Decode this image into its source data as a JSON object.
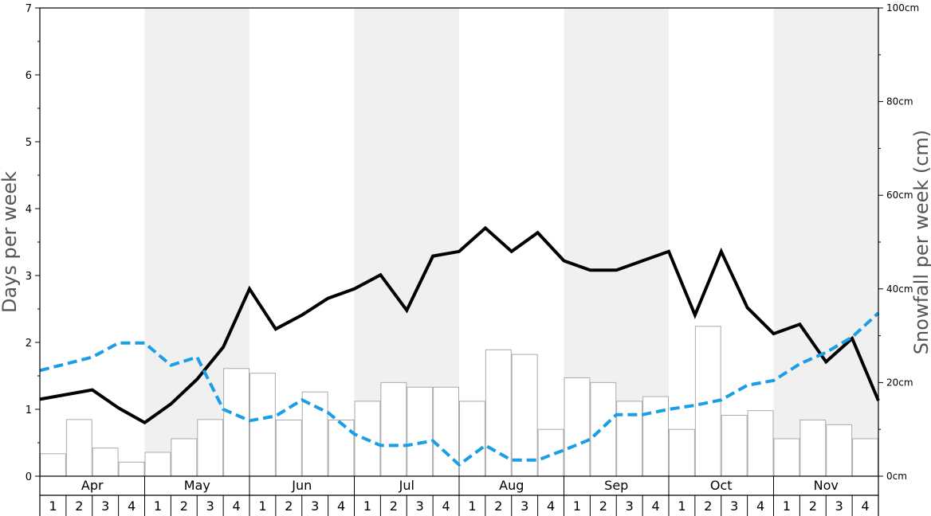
{
  "chart_data": {
    "type": "bar+line",
    "y_left_label": "Days per week",
    "y_right_label": "Snowfall per week (cm)",
    "y_left_ticks": [
      "0",
      "1",
      "2",
      "3",
      "4",
      "5",
      "6",
      "7"
    ],
    "y_left_range": [
      0,
      7
    ],
    "y_right_ticks": [
      "0cm",
      "20cm",
      "40cm",
      "60cm",
      "80cm",
      "100cm"
    ],
    "y_right_range": [
      0,
      100
    ],
    "months": [
      "Apr",
      "May",
      "Jun",
      "Jul",
      "Aug",
      "Sep",
      "Oct",
      "Nov"
    ],
    "weeks_per_month": [
      "1",
      "2",
      "3",
      "4"
    ],
    "alternate_month_shading": true,
    "colors": {
      "shade": "#f0f0f0",
      "bar_fill": "#ffffff",
      "bar_stroke": "#aaaaaa",
      "solid_line": "#000000",
      "dashed_line": "#1a9ee5",
      "axis": "#000000"
    },
    "series": [
      {
        "kind": "bars",
        "axis": "right",
        "values": [
          4.8,
          12.1,
          6.0,
          3.0,
          5.1,
          8.0,
          12.1,
          23.0,
          22.0,
          12.0,
          18.0,
          12.0,
          16.0,
          20.0,
          19.0,
          19.0,
          16.0,
          27.0,
          26.0,
          10.0,
          21.0,
          20.0,
          16.0,
          17.0,
          10.0,
          32.0,
          13.0,
          14.0,
          8.0,
          12.0,
          11.0,
          8.0
        ]
      },
      {
        "kind": "line-solid",
        "axis": "left",
        "values": [
          1.15,
          1.22,
          1.29,
          1.02,
          0.8,
          1.08,
          1.45,
          1.93,
          2.8,
          2.2,
          2.41,
          2.66,
          2.8,
          3.01,
          2.48,
          3.29,
          3.36,
          3.71,
          3.36,
          3.64,
          3.22,
          3.08,
          3.08,
          3.22,
          3.36,
          2.41,
          3.36,
          2.52,
          2.13,
          2.27,
          1.71,
          2.06,
          1.13
        ]
      },
      {
        "kind": "line-dashed",
        "axis": "left",
        "values": [
          1.58,
          1.68,
          1.78,
          1.99,
          1.99,
          1.66,
          1.78,
          1.0,
          0.83,
          0.9,
          1.14,
          0.95,
          0.63,
          0.46,
          0.46,
          0.53,
          0.17,
          0.46,
          0.24,
          0.24,
          0.39,
          0.55,
          0.92,
          0.92,
          1.0,
          1.06,
          1.14,
          1.36,
          1.43,
          1.68,
          1.85,
          2.08,
          2.44
        ]
      }
    ]
  }
}
